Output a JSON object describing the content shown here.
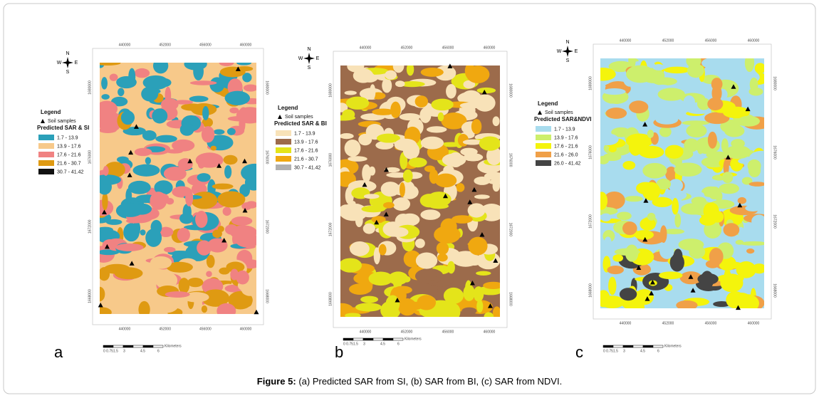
{
  "caption": {
    "label": "Figure 5:",
    "text": "(a) Predicted SAR from SI, (b) SAR from BI, (c) SAR from NDVI."
  },
  "panels": [
    {
      "letter": "a",
      "compass": [
        "N",
        "S",
        "E",
        "W"
      ],
      "legend": {
        "title": "Legend",
        "samples": "Soil samples",
        "heading": "Predicted SAR & SI",
        "classes": [
          {
            "label": "1.7 - 13.9",
            "color": "#2ba0b9"
          },
          {
            "label": "13.9 - 17.6",
            "color": "#f7c98a"
          },
          {
            "label": "17.6 - 21.6",
            "color": "#f08282"
          },
          {
            "label": "21.6 - 30.7",
            "color": "#df9a12"
          },
          {
            "label": "30.7 - 41.42",
            "color": "#111111"
          }
        ]
      },
      "x_ticks": [
        "440000",
        "452000",
        "456000",
        "460000"
      ],
      "y_ticks": [
        "1680000",
        "1676000",
        "1672000",
        "1668000"
      ],
      "scale": {
        "ticks": [
          "0 0.751.5",
          "3",
          "4.5",
          "6"
        ],
        "unit": "Kilometers"
      }
    },
    {
      "letter": "b",
      "compass": [
        "N",
        "S",
        "E",
        "W"
      ],
      "legend": {
        "title": "Legend",
        "samples": "Soil samples",
        "heading": "Predicted SAR & BI",
        "classes": [
          {
            "label": "1.7 - 13.9",
            "color": "#f8e2b8"
          },
          {
            "label": "13.9 - 17.6",
            "color": "#9c6b4b"
          },
          {
            "label": "17.6 - 21.6",
            "color": "#e4e41a"
          },
          {
            "label": "21.6 - 30.7",
            "color": "#f0a810"
          },
          {
            "label": "30.7 - 41.42",
            "color": "#b0b0b0"
          }
        ]
      },
      "x_ticks": [
        "440000",
        "452000",
        "456000",
        "460000"
      ],
      "y_ticks": [
        "1680000",
        "1676000",
        "1672000",
        "1668000"
      ],
      "scale": {
        "ticks": [
          "0 0.751.5",
          "3",
          "4.5",
          "6"
        ],
        "unit": "Kilometers"
      }
    },
    {
      "letter": "c",
      "compass": [
        "N",
        "S",
        "E",
        "W"
      ],
      "legend": {
        "title": "Legend",
        "samples": "Soil samples",
        "heading": "Predicted SAR&NDVI",
        "classes": [
          {
            "label": "1.7 - 13.9",
            "color": "#a8dcee"
          },
          {
            "label": "13.9 - 17.6",
            "color": "#cdef6c"
          },
          {
            "label": "17.6 - 21.6",
            "color": "#f4f40c"
          },
          {
            "label": "21.6 - 26.0",
            "color": "#f0a048"
          },
          {
            "label": "26.0 - 41.42",
            "color": "#444444"
          }
        ]
      },
      "x_ticks": [
        "440000",
        "452000",
        "456000",
        "460000"
      ],
      "y_ticks": [
        "1680000",
        "1676000",
        "1672000",
        "1668000"
      ],
      "scale": {
        "ticks": [
          "0 0.751.5",
          "3",
          "4.5",
          "6"
        ],
        "unit": "Kilometers"
      }
    }
  ]
}
